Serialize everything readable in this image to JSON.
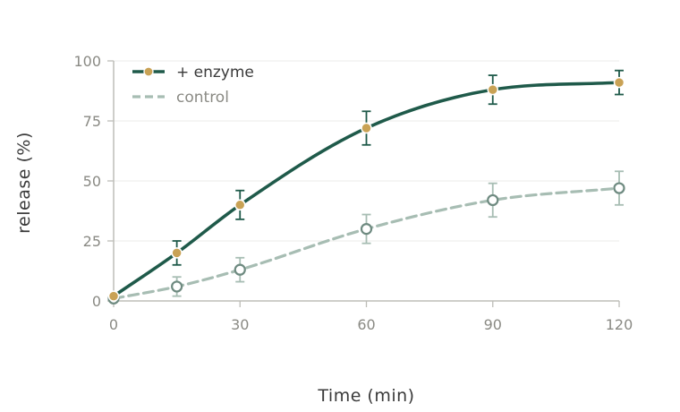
{
  "chart_data": {
    "type": "line",
    "xlabel": "Time (min)",
    "ylabel": "release (%)",
    "xlim": [
      0,
      120
    ],
    "ylim": [
      0,
      100
    ],
    "xticks": [
      0,
      30,
      60,
      90,
      120
    ],
    "yticks": [
      0,
      25,
      50,
      75,
      100
    ],
    "grid": "horizontal",
    "legend_position": "top-left",
    "series": [
      {
        "name": "+ enzyme",
        "color": "#1f5a4a",
        "marker_color": "#c9a255",
        "line_style": "solid",
        "marker": "filled-circle",
        "points": [
          {
            "x": 0,
            "y": 2,
            "err": 0
          },
          {
            "x": 15,
            "y": 20,
            "err": 5
          },
          {
            "x": 30,
            "y": 40,
            "err": 6
          },
          {
            "x": 60,
            "y": 72,
            "err": 7
          },
          {
            "x": 90,
            "y": 88,
            "err": 6
          },
          {
            "x": 120,
            "y": 91,
            "err": 5
          }
        ]
      },
      {
        "name": "control",
        "color": "#a7bdb3",
        "marker_color": "#6e8a80",
        "line_style": "dashed",
        "marker": "open-circle",
        "points": [
          {
            "x": 0,
            "y": 1,
            "err": 0
          },
          {
            "x": 15,
            "y": 6,
            "err": 4
          },
          {
            "x": 30,
            "y": 13,
            "err": 5
          },
          {
            "x": 60,
            "y": 30,
            "err": 6
          },
          {
            "x": 90,
            "y": 42,
            "err": 7
          },
          {
            "x": 120,
            "y": 47,
            "err": 7
          }
        ]
      }
    ]
  }
}
